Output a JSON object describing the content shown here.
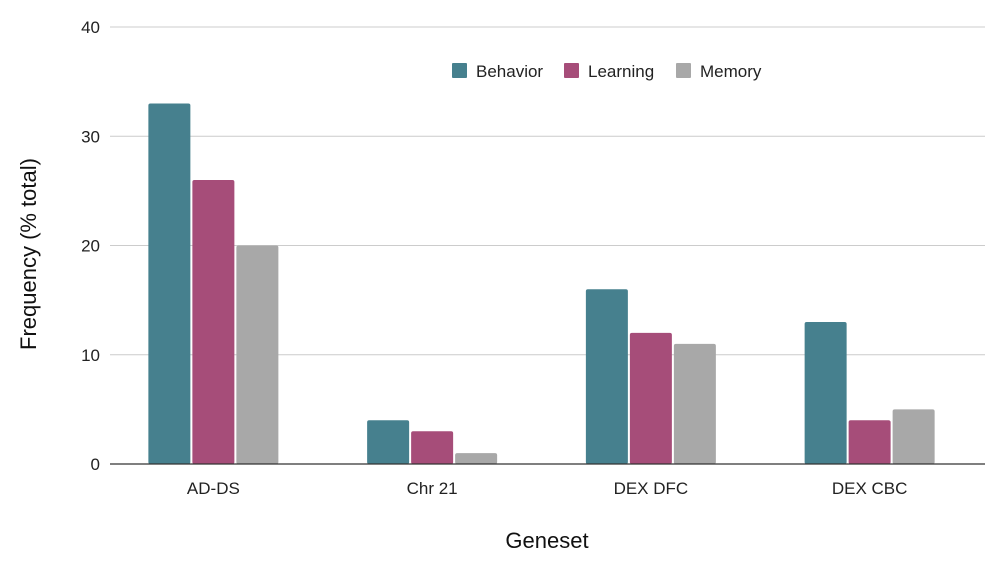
{
  "chart_data": {
    "type": "bar",
    "title": "",
    "xlabel": "Geneset",
    "ylabel": "Frequency (% total)",
    "categories": [
      "AD-DS",
      "Chr 21",
      "DEX DFC",
      "DEX CBC"
    ],
    "series": [
      {
        "name": "Behavior",
        "values": [
          33,
          4,
          16,
          13
        ],
        "color": "#46808e"
      },
      {
        "name": "Learning",
        "values": [
          26,
          3,
          12,
          4
        ],
        "color": "#a64d79"
      },
      {
        "name": "Memory",
        "values": [
          20,
          1,
          11,
          5
        ],
        "color": "#a8a8a8"
      }
    ],
    "ylim": [
      0,
      40
    ],
    "yticks": [
      0,
      10,
      20,
      30,
      40
    ],
    "ytick_labels": [
      "0",
      "10",
      "20",
      "30",
      "40"
    ],
    "grid": true,
    "legend_position": "top-center"
  }
}
